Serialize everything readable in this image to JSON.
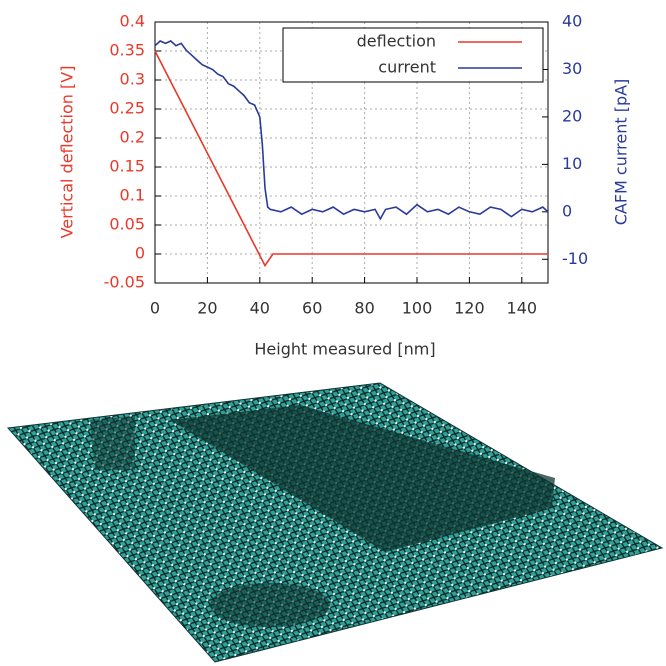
{
  "chart_data": {
    "type": "line",
    "xlabel": "Height measured [nm]",
    "ylabel": "Vertical deflection [V]",
    "y2label": "CAFM current [pA]",
    "xlim": [
      0,
      150
    ],
    "xticks": [
      0,
      20,
      40,
      60,
      80,
      100,
      120,
      140
    ],
    "ylim": [
      -0.05,
      0.4
    ],
    "yticks": [
      -0.05,
      0,
      0.05,
      0.1,
      0.15,
      0.2,
      0.25,
      0.3,
      0.35,
      0.4
    ],
    "y2lim": [
      -15,
      40
    ],
    "y2ticks": [
      -10,
      0,
      10,
      20,
      30,
      40
    ],
    "grid": true,
    "legend": "upper right",
    "series": [
      {
        "name": "deflection",
        "color": "#e8392b",
        "x": [
          0,
          42,
          45,
          60,
          80,
          100,
          120,
          150
        ],
        "values": [
          0.35,
          -0.02,
          0,
          0,
          0,
          0,
          0,
          0
        ]
      },
      {
        "name": "current",
        "color": "#2a3a9b",
        "axis": "y2",
        "x": [
          0,
          2,
          4,
          6,
          8,
          10,
          12,
          14,
          16,
          18,
          20,
          22,
          24,
          26,
          28,
          30,
          32,
          34,
          36,
          38,
          40,
          41,
          42,
          43,
          44,
          48,
          52,
          56,
          60,
          64,
          68,
          72,
          76,
          80,
          84,
          86,
          88,
          92,
          96,
          100,
          104,
          108,
          112,
          116,
          120,
          124,
          128,
          132,
          136,
          140,
          144,
          148,
          150
        ],
        "values": [
          35,
          36,
          35.5,
          36,
          35,
          35.5,
          34,
          33,
          32,
          31,
          30.5,
          30,
          29,
          28.5,
          27,
          26.5,
          25.5,
          24.5,
          23,
          22.5,
          20,
          14,
          5,
          1,
          0.5,
          0,
          1,
          -0.5,
          0.5,
          0,
          1,
          -0.5,
          0.5,
          0,
          0.5,
          -1.5,
          0.5,
          1,
          -0.5,
          1.5,
          0,
          0.5,
          -0.5,
          1,
          0,
          -0.5,
          1,
          0.5,
          -1,
          0.5,
          0,
          1,
          0
        ]
      }
    ]
  }
}
